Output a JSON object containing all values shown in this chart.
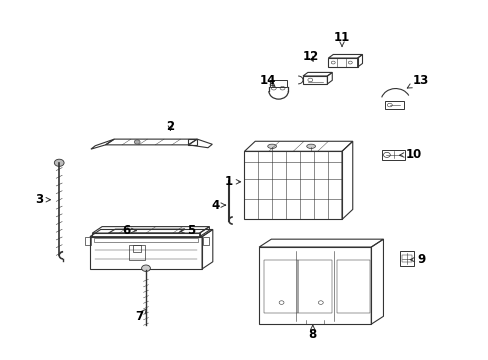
{
  "background_color": "#ffffff",
  "line_color": "#333333",
  "label_color": "#000000",
  "label_fontsize": 8.5,
  "parts_labels": [
    [
      1,
      0.468,
      0.495,
      0.5,
      0.495
    ],
    [
      2,
      0.348,
      0.648,
      0.348,
      0.628
    ],
    [
      3,
      0.08,
      0.445,
      0.11,
      0.445
    ],
    [
      4,
      0.44,
      0.43,
      0.463,
      0.43
    ],
    [
      5,
      0.39,
      0.36,
      0.36,
      0.355
    ],
    [
      6,
      0.258,
      0.36,
      0.285,
      0.358
    ],
    [
      7,
      0.285,
      0.118,
      0.3,
      0.142
    ],
    [
      8,
      0.64,
      0.068,
      0.64,
      0.098
    ],
    [
      9,
      0.862,
      0.278,
      0.832,
      0.278
    ],
    [
      10,
      0.848,
      0.572,
      0.81,
      0.568
    ],
    [
      11,
      0.7,
      0.898,
      0.7,
      0.87
    ],
    [
      12,
      0.635,
      0.845,
      0.645,
      0.822
    ],
    [
      13,
      0.862,
      0.778,
      0.832,
      0.755
    ],
    [
      14,
      0.548,
      0.778,
      0.568,
      0.755
    ]
  ]
}
